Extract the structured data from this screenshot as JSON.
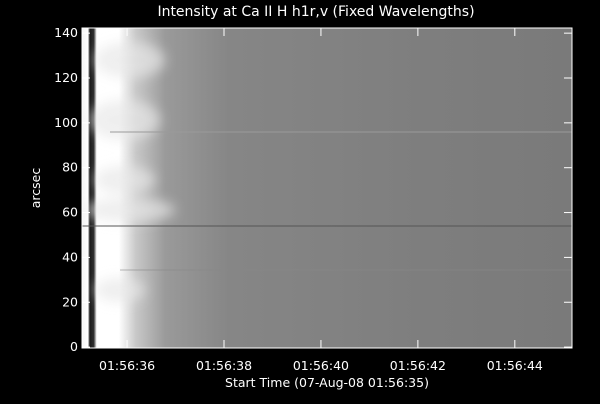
{
  "chart_data": {
    "type": "image",
    "title": "Intensity at Ca II H h1r,v (Fixed Wavelengths)",
    "x_label": "Start Time (07-Aug-08 01:56:35)",
    "y_label": "arcsec",
    "xlim": [
      0.07,
      10.18
    ],
    "xticks": [
      {
        "value": 1,
        "label": "01:56:36"
      },
      {
        "value": 3,
        "label": "01:56:38"
      },
      {
        "value": 5,
        "label": "01:56:40"
      },
      {
        "value": 7,
        "label": "01:56:42"
      },
      {
        "value": 9,
        "label": "01:56:44"
      }
    ],
    "ylim": [
      -0.4,
      142.3
    ],
    "yticks": [
      0,
      20,
      40,
      60,
      80,
      100,
      120,
      140
    ]
  }
}
